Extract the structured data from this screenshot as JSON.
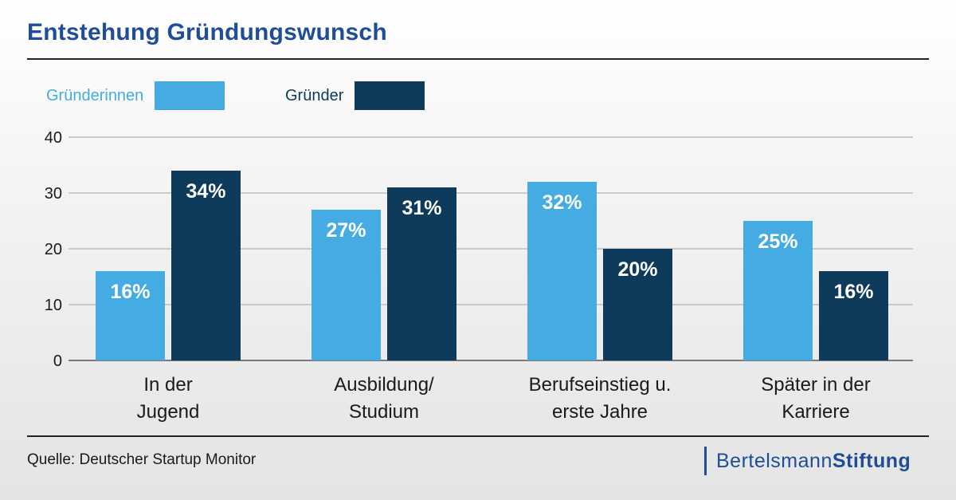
{
  "title": "Entstehung Gründungswunsch",
  "legend": [
    {
      "label": "Gründerinnen",
      "color": "#45ace3"
    },
    {
      "label": "Gründer",
      "color": "#0e3a5c"
    }
  ],
  "chart_data": {
    "type": "bar",
    "categories": [
      [
        "In der",
        "Jugend"
      ],
      [
        "Ausbildung/",
        "Studium"
      ],
      [
        "Berufseinstieg u.",
        "erste Jahre"
      ],
      [
        "Später in der",
        "Karriere"
      ]
    ],
    "series": [
      {
        "name": "Gründerinnen",
        "values": [
          16,
          27,
          32,
          25
        ],
        "labels": [
          "16%",
          "27%",
          "32%",
          "25%"
        ],
        "color": "#45ace3"
      },
      {
        "name": "Gründer",
        "values": [
          34,
          31,
          20,
          16
        ],
        "labels": [
          "34%",
          "31%",
          "20%",
          "16%"
        ],
        "color": "#0e3a5c"
      }
    ],
    "yticks": [
      0,
      10,
      20,
      30,
      40
    ],
    "ylim": [
      0,
      40
    ],
    "grid": true,
    "legend_position": "top-left"
  },
  "footer": {
    "source": "Quelle: Deutscher Startup Monitor",
    "brand_part1": "Bertelsmann",
    "brand_part2": "Stiftung"
  }
}
